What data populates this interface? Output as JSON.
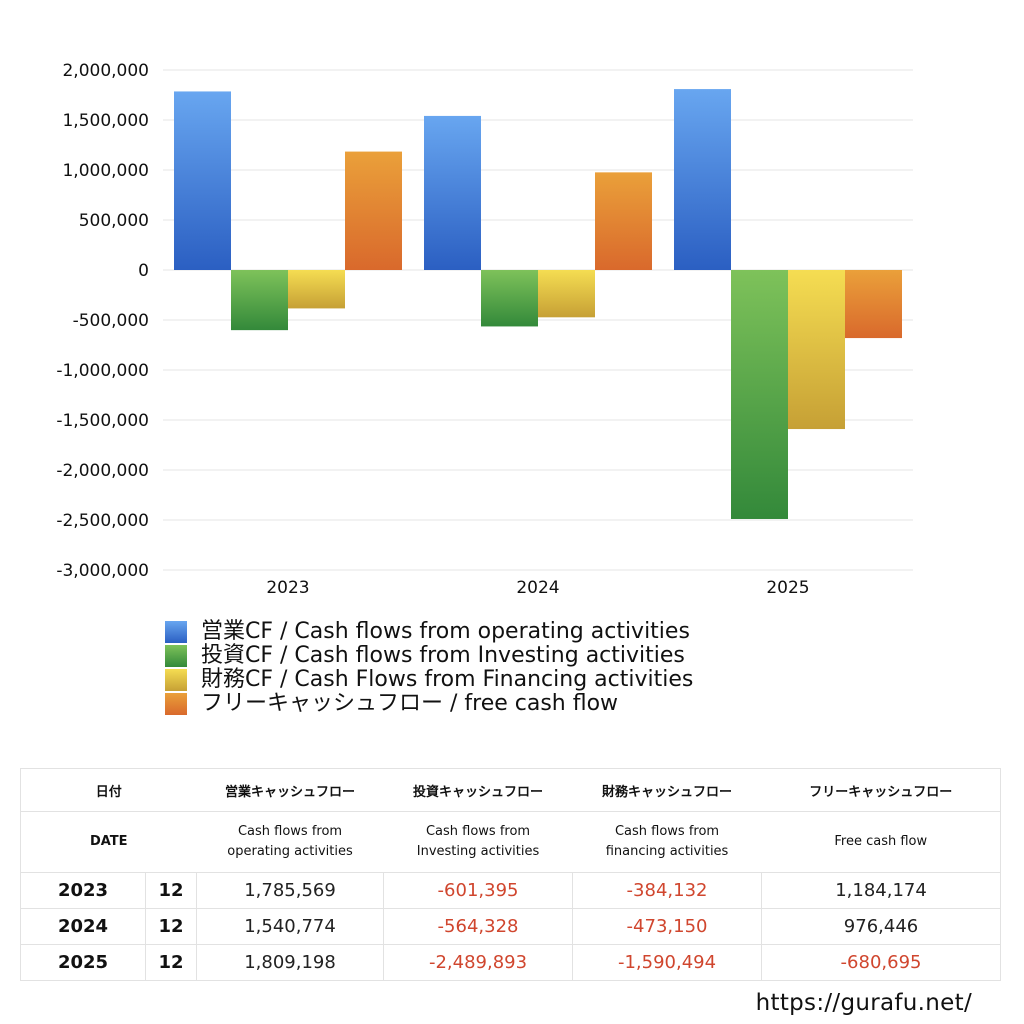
{
  "chart_data": {
    "type": "bar",
    "categories": [
      "2023",
      "2024",
      "2025"
    ],
    "series": [
      {
        "name": "営業CF / Cash flows from operating activities",
        "values": [
          1785569,
          1540774,
          1809198
        ],
        "color_top": "#68a6f0",
        "color_bottom": "#2b5fc2"
      },
      {
        "name": "投資CF / Cash flows from Investing activities",
        "values": [
          -601395,
          -564328,
          -2489893
        ],
        "color_top": "#7ec25a",
        "color_bottom": "#33893a"
      },
      {
        "name": "財務CF / Cash Flows from Financing activities",
        "values": [
          -384132,
          -473150,
          -1590494
        ],
        "color_top": "#f5dd52",
        "color_bottom": "#c6a035"
      },
      {
        "name": "フリーキャッシュフロー / free cash flow",
        "values": [
          1184174,
          976446,
          -680695
        ],
        "color_top": "#eaa03a",
        "color_bottom": "#d9692c"
      }
    ],
    "ylim": [
      -3000000,
      2000000
    ],
    "yticks": [
      "2,000,000",
      "1,500,000",
      "1,000,000",
      "500,000",
      "0",
      "-500,000",
      "-1,000,000",
      "-1,500,000",
      "-2,000,000",
      "-2,500,000",
      "-3,000,000"
    ],
    "ytick_values": [
      2000000,
      1500000,
      1000000,
      500000,
      0,
      -500000,
      -1000000,
      -1500000,
      -2000000,
      -2500000,
      -3000000
    ],
    "grid": true,
    "legend_position": "bottom"
  },
  "table": {
    "header_jp": [
      "日付",
      "営業キャッシュフロー",
      "投資キャッシュフロー",
      "財務キャッシュフロー",
      "フリーキャッシュフロー"
    ],
    "header_en_date": "DATE",
    "header_en": [
      [
        "Cash flows from",
        "operating activities"
      ],
      [
        "Cash flows from",
        "Investing activities"
      ],
      [
        "Cash flows from",
        "financing activities"
      ],
      [
        "Free cash flow",
        ""
      ]
    ],
    "rows": [
      {
        "year": "2023",
        "month": "12",
        "values": [
          "1,785,569",
          "-601,395",
          "-384,132",
          "1,184,174"
        ]
      },
      {
        "year": "2024",
        "month": "12",
        "values": [
          "1,540,774",
          "-564,328",
          "-473,150",
          "976,446"
        ]
      },
      {
        "year": "2025",
        "month": "12",
        "values": [
          "1,809,198",
          "-2,489,893",
          "-1,590,494",
          "-680,695"
        ]
      }
    ]
  },
  "site_url": "https://gurafu.net/"
}
